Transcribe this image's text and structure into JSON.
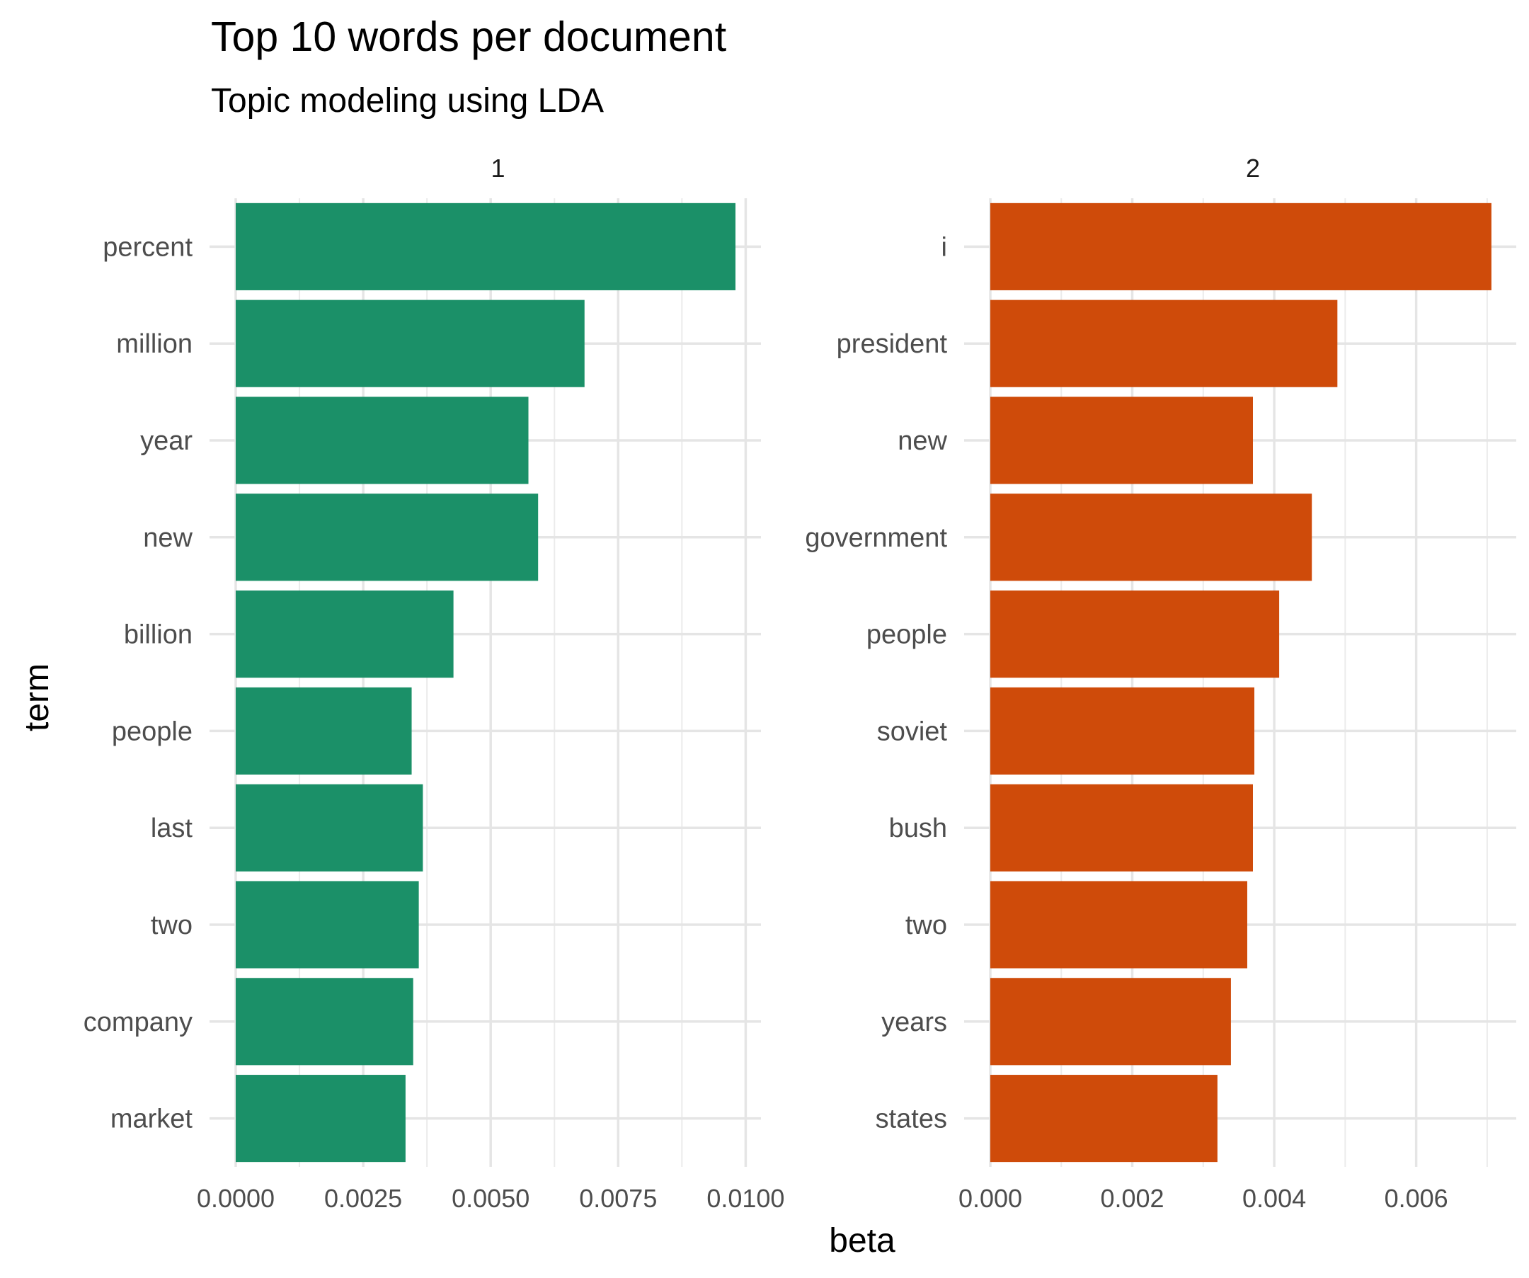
{
  "chart_data": {
    "type": "bar",
    "orientation": "horizontal",
    "title": "Top 10 words per document",
    "subtitle": "Topic modeling using LDA",
    "xlabel": "beta",
    "ylabel": "term",
    "grid": true,
    "legend": "none",
    "facets": [
      {
        "name": "1",
        "color": "#1b9068",
        "xlim": [
          0,
          0.0103
        ],
        "xticks": [
          "0.0000",
          "0.0025",
          "0.0050",
          "0.0075",
          "0.0100"
        ],
        "xtick_values": [
          0,
          0.0025,
          0.005,
          0.0075,
          0.01
        ],
        "categories": [
          "percent",
          "million",
          "year",
          "new",
          "billion",
          "people",
          "last",
          "two",
          "company",
          "market"
        ],
        "values": [
          0.0098,
          0.00684,
          0.00574,
          0.00593,
          0.00427,
          0.00345,
          0.00367,
          0.00359,
          0.00348,
          0.00333
        ]
      },
      {
        "name": "2",
        "color": "#cf4b0a",
        "xlim": [
          0,
          0.00741
        ],
        "xticks": [
          "0.000",
          "0.002",
          "0.004",
          "0.006"
        ],
        "xtick_values": [
          0,
          0.002,
          0.004,
          0.006
        ],
        "categories": [
          "i",
          "president",
          "new",
          "government",
          "people",
          "soviet",
          "bush",
          "two",
          "years",
          "states"
        ],
        "values": [
          0.00706,
          0.00489,
          0.0037,
          0.00453,
          0.00407,
          0.00372,
          0.0037,
          0.00362,
          0.00339,
          0.0032
        ]
      }
    ]
  }
}
